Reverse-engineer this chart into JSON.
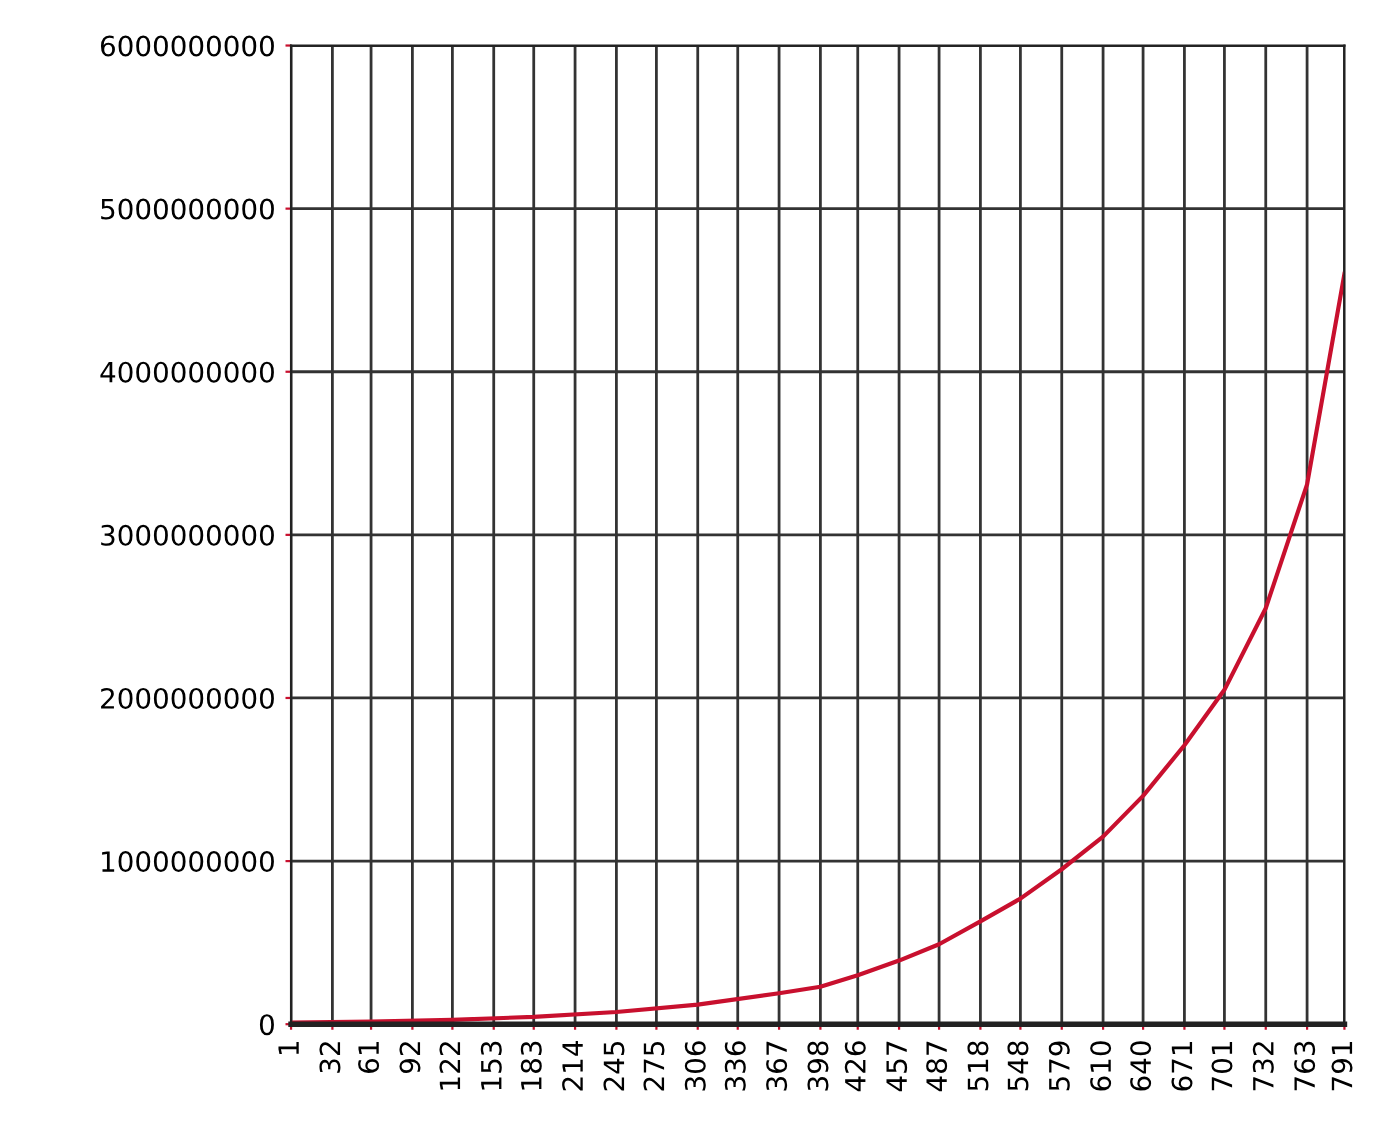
{
  "chart_data": {
    "type": "line",
    "x": [
      1,
      61,
      122,
      183,
      245,
      306,
      367,
      398,
      426,
      457,
      487,
      518,
      548,
      579,
      610,
      640,
      671,
      701,
      732,
      763,
      791
    ],
    "series": [
      {
        "color": "#c8102e",
        "values": [
          10000000,
          16000000,
          27000000,
          45000000,
          75000000,
          120000000,
          190000000,
          230000000,
          300000000,
          390000000,
          490000000,
          630000000,
          770000000,
          950000000,
          1150000000,
          1400000000,
          1710000000,
          2050000000,
          2550000000,
          3310000000,
          4600000000
        ]
      }
    ],
    "xlim": [
      1,
      791
    ],
    "xticks": [
      1,
      32,
      61,
      92,
      122,
      153,
      183,
      214,
      245,
      275,
      306,
      336,
      367,
      398,
      426,
      457,
      487,
      518,
      548,
      579,
      610,
      640,
      671,
      701,
      732,
      763,
      791
    ],
    "ylim": [
      0,
      6000000000
    ],
    "yticks": [
      0,
      1000000000,
      2000000000,
      3000000000,
      4000000000,
      5000000000,
      6000000000
    ],
    "grid": true,
    "marker": "none",
    "line_style": "solid"
  }
}
